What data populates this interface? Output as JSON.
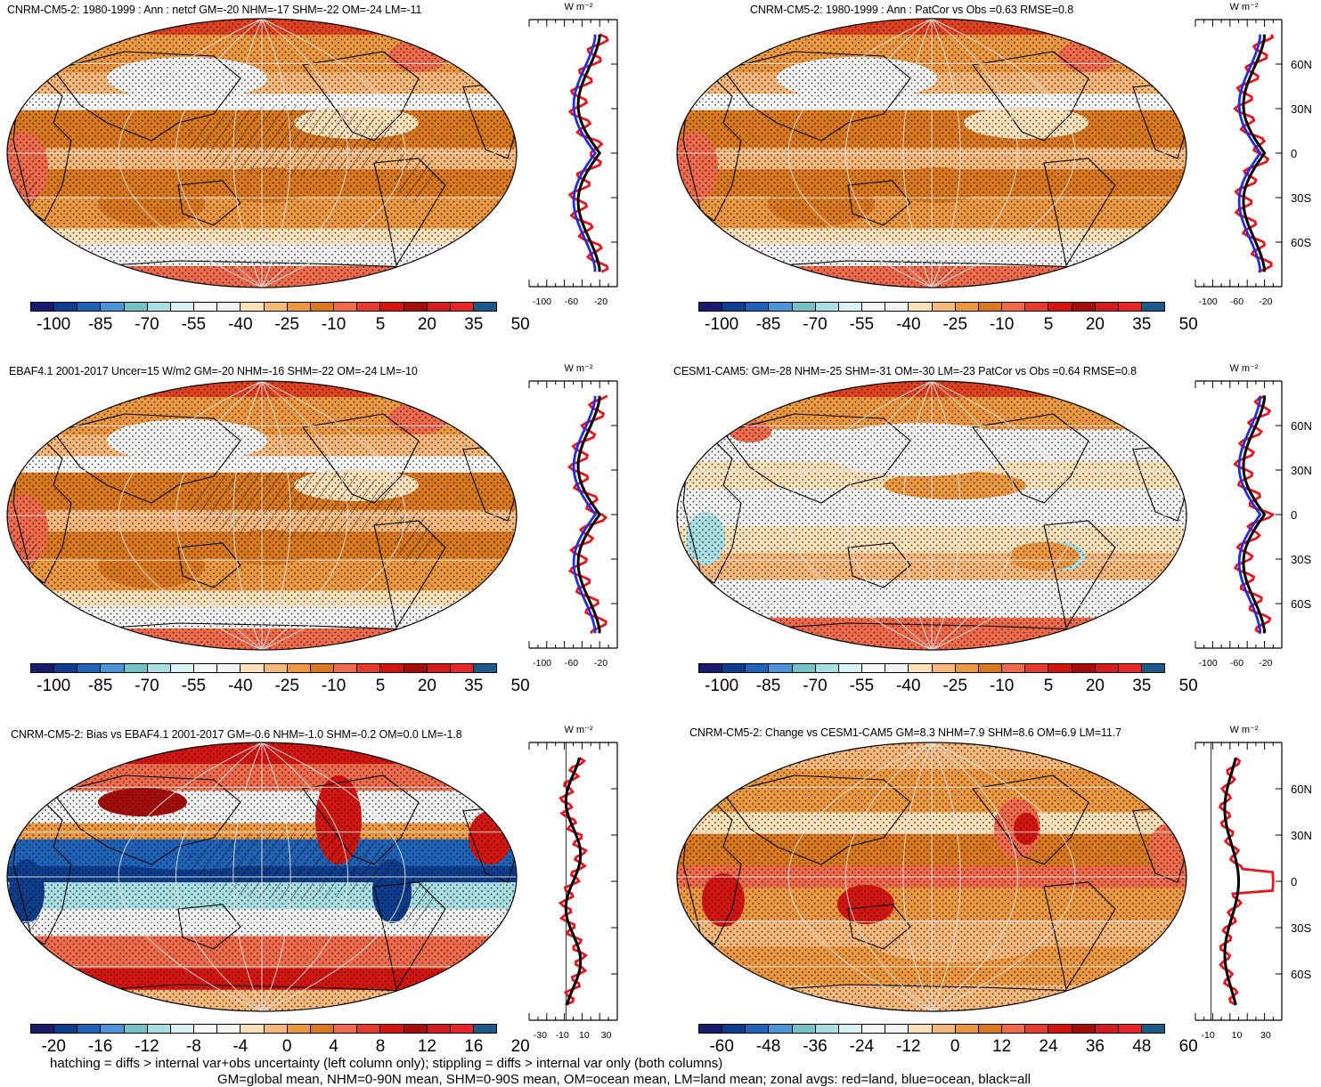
{
  "panels": [
    {
      "id": "p1",
      "title": "CNRM-CM5-2: 1980-1999 : Ann : netcf GM=-20 NHM=-17 SHM=-22 OM=-24 LM=-11",
      "colorbar_labels": [
        "-100",
        "-85",
        "-70",
        "-55",
        "-40",
        "-25",
        "-10",
        "5",
        "20",
        "35",
        "50"
      ],
      "zonal_xticks": [
        "-100",
        "-60",
        "-20"
      ],
      "zonal_lat_labels": [],
      "zonal_unit": "W m⁻²",
      "style": "warm",
      "hatched": true
    },
    {
      "id": "p2",
      "title": "CNRM-CM5-2: 1980-1999 : Ann : PatCor vs Obs =0.63 RMSE=0.8",
      "colorbar_labels": [
        "-100",
        "-85",
        "-70",
        "-55",
        "-40",
        "-25",
        "-10",
        "5",
        "20",
        "35",
        "50"
      ],
      "zonal_xticks": [
        "-100",
        "-60",
        "-20"
      ],
      "zonal_lat_labels": [
        "60N",
        "30N",
        "0",
        "30S",
        "60S"
      ],
      "zonal_unit": "W m⁻²",
      "style": "warm",
      "hatched": false
    },
    {
      "id": "p3",
      "title": "EBAF4.1 2001-2017 Uncer=15 W/m2 GM=-20 NHM=-16 SHM=-22 OM=-24 LM=-10",
      "colorbar_labels": [
        "-100",
        "-85",
        "-70",
        "-55",
        "-40",
        "-25",
        "-10",
        "5",
        "20",
        "35",
        "50"
      ],
      "zonal_xticks": [
        "-100",
        "-60",
        "-20"
      ],
      "zonal_lat_labels": [],
      "zonal_unit": "W m⁻²",
      "style": "warm",
      "hatched": true
    },
    {
      "id": "p4",
      "title": "CESM1-CAM5: GM=-28 NHM=-25 SHM=-31 OM=-30 LM=-23 PatCor vs Obs =0.64 RMSE=0.8",
      "colorbar_labels": [
        "-100",
        "-85",
        "-70",
        "-55",
        "-40",
        "-25",
        "-10",
        "5",
        "20",
        "35",
        "50"
      ],
      "zonal_xticks": [
        "-100",
        "-60",
        "-20"
      ],
      "zonal_lat_labels": [
        "60N",
        "30N",
        "0",
        "30S",
        "60S"
      ],
      "zonal_unit": "W m⁻²",
      "style": "cool",
      "hatched": false
    },
    {
      "id": "p5",
      "title": "CNRM-CM5-2: Bias vs EBAF4.1 2001-2017 GM=-0.6 NHM=-1.0 SHM=-0.2 OM=0.0 LM=-1.8",
      "colorbar_labels": [
        "-20",
        "-16",
        "-12",
        "-8",
        "-4",
        "0",
        "4",
        "8",
        "12",
        "16",
        "20"
      ],
      "zonal_xticks": [
        "-30",
        "-10",
        "10",
        "30"
      ],
      "zonal_lat_labels": [],
      "zonal_unit": "W m⁻²",
      "style": "bias",
      "hatched": true
    },
    {
      "id": "p6",
      "title": "CNRM-CM5-2: Change vs CESM1-CAM5 GM=8.3 NHM=7.9 SHM=8.6 OM=6.9 LM=11.7",
      "colorbar_labels": [
        "-60",
        "-48",
        "-36",
        "-24",
        "-12",
        "0",
        "12",
        "24",
        "36",
        "48",
        "60"
      ],
      "zonal_xticks": [
        "-10",
        "10",
        "30"
      ],
      "zonal_lat_labels": [
        "60N",
        "30N",
        "0",
        "30S",
        "60S"
      ],
      "zonal_unit": "W m⁻²",
      "style": "change",
      "hatched": false
    }
  ],
  "colorbar_colors": [
    "#1a1a6e",
    "#0d3d8f",
    "#1f63b8",
    "#4a94d8",
    "#74c2c8",
    "#a9dfe3",
    "#d8f2f3",
    "#f7f7f7",
    "#f3f3f3",
    "#fbe0b8",
    "#f6b77a",
    "#ec9840",
    "#d9781c",
    "#ef6a4a",
    "#e63a2e",
    "#d5140e",
    "#a60d08",
    "#d21c1e",
    "#e8262a",
    "#1c5a8c"
  ],
  "footer": {
    "line1": "hatching = diffs > internal var+obs uncertainty (left column only); stippling = diffs > internal var only (both columns)",
    "line2": "GM=global mean, NHM=0-90N mean, SHM=0-90S mean, OM=ocean mean, LM=land mean; zonal avgs: red=land, blue=ocean, black=all"
  },
  "zonal_legend": {
    "land": "#e8151b",
    "ocean": "#1f2fe0",
    "all": "#000000"
  }
}
